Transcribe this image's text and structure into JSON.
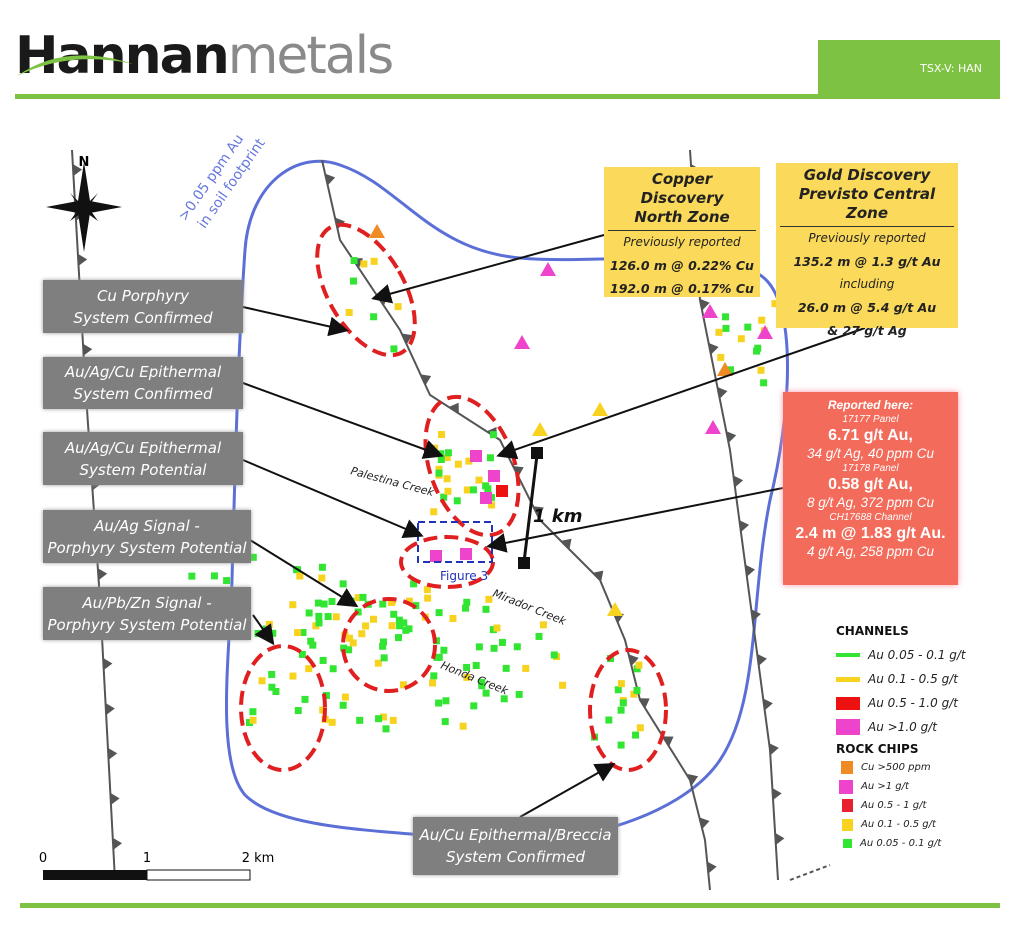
{
  "header": {
    "logo_bold": "Hannan",
    "logo_light": "metals",
    "ticker": "TSX-V: HAN"
  },
  "map": {
    "north_label": "N",
    "soil_label_1": ">0.05 ppm Au",
    "soil_label_2": "in soil footprint",
    "creeks": [
      "Palestina Creek",
      "Mirador Creek",
      "Honda Creek"
    ],
    "figure_label": "Figure 3",
    "distance_label": "1 km",
    "colors": {
      "soil_outline": "#5b6fd6",
      "target_ellipse": "#e02020",
      "fault": "#555555",
      "brand_green": "#7dc242"
    }
  },
  "callouts": [
    {
      "lines": [
        "Cu Porphyry",
        "System Confirmed"
      ]
    },
    {
      "lines": [
        "Au/Ag/Cu Epithermal",
        "System Confirmed"
      ]
    },
    {
      "lines": [
        "Au/Ag/Cu Epithermal",
        "System Potential"
      ]
    },
    {
      "lines": [
        "Au/Ag Signal -",
        "Porphyry System Potential"
      ]
    },
    {
      "lines": [
        "Au/Pb/Zn Signal -",
        "Porphyry System Potential"
      ]
    },
    {
      "lines": [
        "Au/Cu Epithermal/Breccia",
        "System Confirmed"
      ]
    }
  ],
  "copper_box": {
    "title_1": "Copper Discovery",
    "title_2": "North Zone",
    "sub": "Previously reported",
    "v1": "126.0 m @ 0.22% Cu",
    "v2": "192.0 m @ 0.17% Cu"
  },
  "gold_box": {
    "title_1": "Gold Discovery",
    "title_2": "Previsto Central Zone",
    "sub": "Previously reported",
    "v1": "135.2 m @ 1.3 g/t Au",
    "incl": "including",
    "v2": "26.0 m @ 5.4 g/t Au",
    "v3": "& 27 g/t Ag"
  },
  "reported_box": {
    "heading": "Reported here:",
    "items": [
      {
        "label": "17177 Panel",
        "main": "6.71 g/t Au,",
        "detail": "34 g/t Ag, 40 ppm Cu"
      },
      {
        "label": "17178 Panel",
        "main": "0.58 g/t Au,",
        "detail": "8 g/t Ag, 372 ppm Cu"
      },
      {
        "label": "CH17688 Channel",
        "main": "2.4 m @ 1.83 g/t Au.",
        "detail": "4 g/t Ag, 258 ppm Cu"
      }
    ]
  },
  "legend": {
    "channels_title": "CHANNELS",
    "channels": [
      {
        "label": "Au 0.05 - 0.1 g/t",
        "color": "#33e533"
      },
      {
        "label": "Au 0.1 - 0.5 g/t",
        "color": "#f7d21f"
      },
      {
        "label": "Au 0.5 - 1.0 g/t",
        "color": "#ee1111"
      },
      {
        "label": "Au >1.0 g/t",
        "color": "#ee44cc"
      }
    ],
    "rock_title": "ROCK CHIPS",
    "rock_chips": [
      {
        "label": "Cu >500 ppm",
        "color": "#f08a24"
      },
      {
        "label": "Au >1 g/t",
        "color": "#ee44cc"
      },
      {
        "label": "Au 0.5 - 1 g/t",
        "color": "#e82030"
      },
      {
        "label": "Au 0.1 - 0.5 g/t",
        "color": "#f7d21f"
      },
      {
        "label": "Au 0.05 - 0.1 g/t",
        "color": "#33e533"
      }
    ]
  },
  "scale": {
    "t0": "0",
    "t1": "1",
    "t2": "2 km"
  }
}
